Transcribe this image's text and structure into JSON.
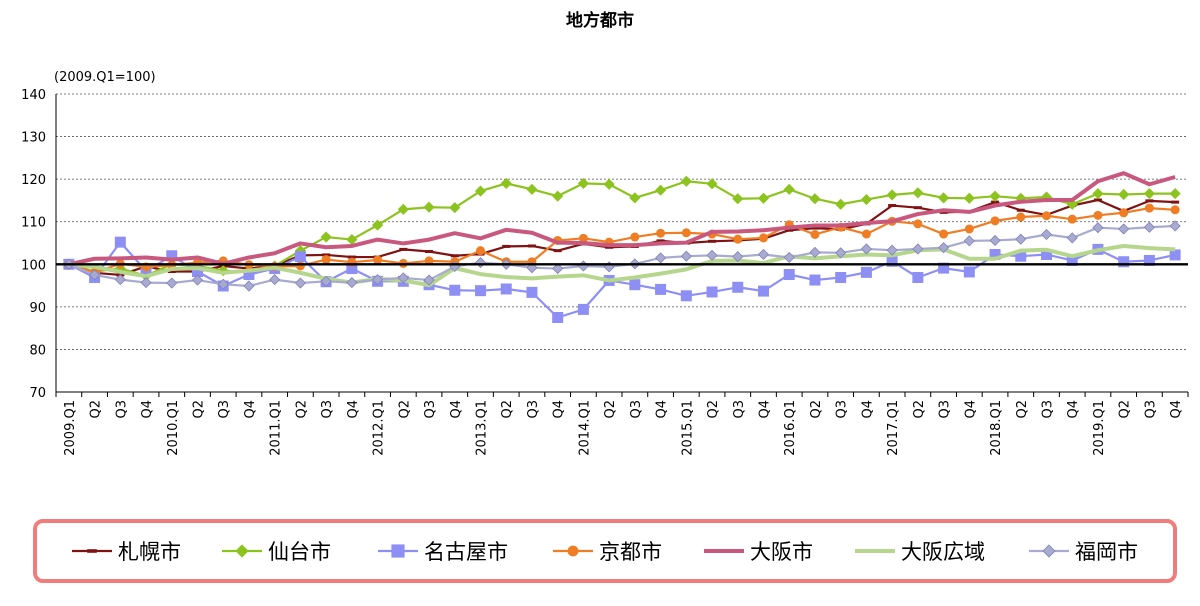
{
  "chart_data": {
    "type": "line",
    "title": "地方都市",
    "unit_note": "(2009.Q1=100)",
    "ylim": [
      70,
      140
    ],
    "yticks": [
      "140",
      "130",
      "120",
      "110",
      "100",
      "90",
      "80",
      "70"
    ],
    "reference_line": 100,
    "grid": true,
    "legend_position": "bottom",
    "categories": [
      "2009.Q1",
      "Q2",
      "Q3",
      "Q4",
      "2010.Q1",
      "Q2",
      "Q3",
      "Q4",
      "2011.Q1",
      "Q2",
      "Q3",
      "Q4",
      "2012.Q1",
      "Q2",
      "Q3",
      "Q4",
      "2013.Q1",
      "Q2",
      "Q3",
      "Q4",
      "2014.Q1",
      "Q2",
      "Q3",
      "Q4",
      "2015.Q1",
      "Q2",
      "Q3",
      "Q4",
      "2016.Q1",
      "Q2",
      "Q3",
      "Q4",
      "2017.Q1",
      "Q2",
      "Q3",
      "Q4",
      "2018.Q1",
      "Q2",
      "Q3",
      "Q4",
      "2019.Q1",
      "Q2",
      "Q3",
      "Q4"
    ],
    "series": [
      {
        "name": "札幌市",
        "color": "#7f1212",
        "marker": "dash",
        "values": [
          100,
          98,
          97.5,
          99.5,
          98.3,
          98.3,
          99.6,
          99,
          99.6,
          102.1,
          102.2,
          101.7,
          101.7,
          103.5,
          103,
          102,
          102.4,
          104.2,
          104.3,
          103.2,
          104.8,
          104,
          104.2,
          105.5,
          105,
          105.4,
          105.6,
          106,
          108,
          108.5,
          108.2,
          109.5,
          113.8,
          113.3,
          112.2,
          112.4,
          114.6,
          112.7,
          111.6,
          113.8,
          115.1,
          112.5,
          114.9,
          114.6
        ]
      },
      {
        "name": "仙台市",
        "color": "#8cc31e",
        "marker": "diamond",
        "values": [
          100,
          98.3,
          99,
          97.3,
          100,
          99.6,
          98.5,
          98.2,
          99.6,
          103.2,
          106.4,
          105.8,
          109.2,
          112.9,
          113.4,
          113.3,
          117.2,
          119,
          117.6,
          116,
          119,
          118.8,
          115.6,
          117.4,
          119.5,
          118.9,
          115.4,
          115.5,
          117.6,
          115.4,
          114.1,
          115.2,
          116.3,
          116.8,
          115.6,
          115.5,
          116,
          115.5,
          115.8,
          114.1,
          116.6,
          116.4,
          116.6,
          116.6
        ]
      },
      {
        "name": "名古屋市",
        "color": "#8e8ff5",
        "marker": "square",
        "values": [
          100,
          96.9,
          105.2,
          98.4,
          102,
          98.3,
          94.9,
          97.6,
          99,
          101.8,
          95.9,
          99,
          96,
          96,
          95.2,
          93.9,
          93.8,
          94.2,
          93.4,
          87.5,
          89.4,
          96.2,
          95.2,
          94.1,
          92.6,
          93.5,
          94.6,
          93.7,
          97.6,
          96.3,
          96.9,
          98.1,
          100.7,
          96.9,
          99.1,
          98.2,
          102.3,
          101.9,
          102.3,
          100.9,
          103.5,
          100.6,
          100.9,
          102.2
        ]
      },
      {
        "name": "京都市",
        "color": "#ee7d23",
        "marker": "circle",
        "values": [
          100,
          98.1,
          100.1,
          99.4,
          99.8,
          100.4,
          100.8,
          99.9,
          99.5,
          99.6,
          101.1,
          100.5,
          101,
          100.2,
          100.8,
          100.6,
          103.2,
          100.6,
          100.6,
          105.6,
          106.1,
          105.2,
          106.4,
          107.3,
          107.4,
          107.1,
          105.9,
          106.2,
          109.3,
          107,
          108.7,
          107.1,
          110.1,
          109.5,
          107.1,
          108.3,
          110.2,
          111.1,
          111.4,
          110.6,
          111.5,
          112.1,
          113.2,
          112.8
        ]
      },
      {
        "name": "大阪市",
        "color": "#c8587e",
        "marker": "none",
        "values": [
          100,
          101.3,
          101.4,
          101.6,
          101.1,
          101.6,
          100.1,
          101.6,
          102.6,
          104.9,
          104,
          104.3,
          105.8,
          104.9,
          105.8,
          107.3,
          106.1,
          108.1,
          107.4,
          105.1,
          105,
          104.5,
          104.5,
          104.9,
          105.1,
          107.6,
          107.7,
          108,
          108.6,
          109.1,
          109.1,
          109.7,
          110.1,
          111.8,
          112.7,
          112.3,
          113.8,
          114.7,
          115.1,
          115.1,
          119.5,
          121.4,
          118.8,
          120.5
        ]
      },
      {
        "name": "大阪広域",
        "color": "#b5d68c",
        "marker": "none",
        "values": [
          100,
          99.4,
          98.2,
          97.2,
          98.9,
          99.1,
          98,
          98.5,
          99.2,
          98,
          96.6,
          95.7,
          96.6,
          96.2,
          95.1,
          99.1,
          97.7,
          97,
          96.7,
          97.1,
          97.4,
          96.2,
          96.9,
          97.8,
          98.8,
          100.8,
          100.9,
          100.3,
          101.9,
          101.4,
          101.9,
          102.3,
          102.1,
          103.3,
          103.5,
          101.3,
          101.3,
          103.2,
          103.4,
          101.9,
          103.3,
          104.3,
          103.8,
          103.5
        ]
      },
      {
        "name": "福岡市",
        "color": "#a8aad0",
        "marker": "diamond",
        "values": [
          100,
          97.5,
          96.4,
          95.7,
          95.6,
          96.3,
          95.3,
          94.9,
          96.4,
          95.6,
          96,
          95.7,
          96.4,
          96.8,
          96.3,
          99.5,
          100.4,
          100,
          99.2,
          99,
          99.6,
          99.4,
          100.1,
          101.5,
          101.9,
          102.1,
          101.8,
          102.3,
          101.6,
          102.8,
          102.7,
          103.6,
          103.3,
          103.6,
          103.9,
          105.5,
          105.6,
          105.9,
          107,
          106.2,
          108.6,
          108.3,
          108.7,
          109
        ]
      }
    ]
  }
}
